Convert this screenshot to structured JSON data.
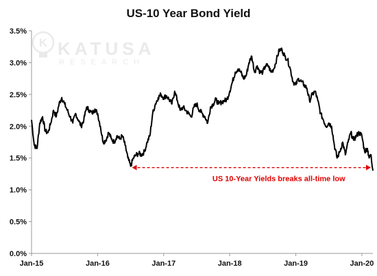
{
  "chart_data": {
    "type": "line",
    "title": "US-10 Year Bond Yield",
    "xlabel": "",
    "ylabel": "",
    "y_ticks": [
      "0.0%",
      "0.5%",
      "1.0%",
      "1.5%",
      "2.0%",
      "2.5%",
      "3.0%",
      "3.5%"
    ],
    "ylim": [
      0.0,
      3.5
    ],
    "x_ticks": [
      "Jan-15",
      "Jan-16",
      "Jan-17",
      "Jan-18",
      "Jan-19",
      "Jan-20"
    ],
    "xlim": [
      "2015-01",
      "2020-03"
    ],
    "grid": false,
    "series": [
      {
        "color": "#000000",
        "points": [
          [
            "2015-01",
            2.1
          ],
          [
            "2015-01",
            1.7
          ],
          [
            "2015-02",
            1.65
          ],
          [
            "2015-02",
            2.05
          ],
          [
            "2015-03",
            2.15
          ],
          [
            "2015-03",
            1.92
          ],
          [
            "2015-04",
            1.9
          ],
          [
            "2015-04",
            2.05
          ],
          [
            "2015-05",
            2.25
          ],
          [
            "2015-05",
            2.15
          ],
          [
            "2015-06",
            2.35
          ],
          [
            "2015-06",
            2.45
          ],
          [
            "2015-07",
            2.35
          ],
          [
            "2015-07",
            2.25
          ],
          [
            "2015-08",
            2.15
          ],
          [
            "2015-08",
            2.05
          ],
          [
            "2015-09",
            2.2
          ],
          [
            "2015-09",
            2.1
          ],
          [
            "2015-10",
            2.0
          ],
          [
            "2015-10",
            2.1
          ],
          [
            "2015-11",
            2.3
          ],
          [
            "2015-11",
            2.25
          ],
          [
            "2015-12",
            2.2
          ],
          [
            "2015-12",
            2.27
          ],
          [
            "2016-01",
            2.2
          ],
          [
            "2016-01",
            2.0
          ],
          [
            "2016-02",
            1.75
          ],
          [
            "2016-02",
            1.78
          ],
          [
            "2016-03",
            1.9
          ],
          [
            "2016-03",
            1.8
          ],
          [
            "2016-04",
            1.75
          ],
          [
            "2016-04",
            1.85
          ],
          [
            "2016-05",
            1.8
          ],
          [
            "2016-05",
            1.85
          ],
          [
            "2016-06",
            1.7
          ],
          [
            "2016-06",
            1.5
          ],
          [
            "2016-07",
            1.37
          ],
          [
            "2016-07",
            1.5
          ],
          [
            "2016-08",
            1.55
          ],
          [
            "2016-08",
            1.57
          ],
          [
            "2016-09",
            1.55
          ],
          [
            "2016-09",
            1.6
          ],
          [
            "2016-10",
            1.75
          ],
          [
            "2016-10",
            1.85
          ],
          [
            "2016-11",
            2.2
          ],
          [
            "2016-11",
            2.35
          ],
          [
            "2016-12",
            2.45
          ],
          [
            "2016-12",
            2.5
          ],
          [
            "2017-01",
            2.45
          ],
          [
            "2017-01",
            2.48
          ],
          [
            "2017-02",
            2.42
          ],
          [
            "2017-02",
            2.35
          ],
          [
            "2017-03",
            2.55
          ],
          [
            "2017-03",
            2.4
          ],
          [
            "2017-04",
            2.25
          ],
          [
            "2017-04",
            2.3
          ],
          [
            "2017-05",
            2.25
          ],
          [
            "2017-05",
            2.2
          ],
          [
            "2017-06",
            2.15
          ],
          [
            "2017-06",
            2.3
          ],
          [
            "2017-07",
            2.35
          ],
          [
            "2017-07",
            2.25
          ],
          [
            "2017-08",
            2.2
          ],
          [
            "2017-08",
            2.15
          ],
          [
            "2017-09",
            2.05
          ],
          [
            "2017-09",
            2.3
          ],
          [
            "2017-10",
            2.35
          ],
          [
            "2017-10",
            2.42
          ],
          [
            "2017-11",
            2.35
          ],
          [
            "2017-11",
            2.38
          ],
          [
            "2017-12",
            2.4
          ],
          [
            "2017-12",
            2.42
          ],
          [
            "2018-01",
            2.55
          ],
          [
            "2018-01",
            2.7
          ],
          [
            "2018-02",
            2.85
          ],
          [
            "2018-02",
            2.9
          ],
          [
            "2018-03",
            2.85
          ],
          [
            "2018-03",
            2.75
          ],
          [
            "2018-04",
            2.8
          ],
          [
            "2018-04",
            3.0
          ],
          [
            "2018-05",
            3.1
          ],
          [
            "2018-05",
            2.85
          ],
          [
            "2018-06",
            2.95
          ],
          [
            "2018-06",
            2.85
          ],
          [
            "2018-07",
            2.85
          ],
          [
            "2018-07",
            2.95
          ],
          [
            "2018-08",
            2.95
          ],
          [
            "2018-08",
            2.85
          ],
          [
            "2018-09",
            2.9
          ],
          [
            "2018-09",
            3.05
          ],
          [
            "2018-10",
            3.2
          ],
          [
            "2018-10",
            3.2
          ],
          [
            "2018-11",
            3.1
          ],
          [
            "2018-11",
            3.05
          ],
          [
            "2018-12",
            2.9
          ],
          [
            "2018-12",
            2.7
          ],
          [
            "2019-01",
            2.65
          ],
          [
            "2019-01",
            2.75
          ],
          [
            "2019-02",
            2.7
          ],
          [
            "2019-02",
            2.65
          ],
          [
            "2019-03",
            2.6
          ],
          [
            "2019-03",
            2.4
          ],
          [
            "2019-04",
            2.5
          ],
          [
            "2019-04",
            2.55
          ],
          [
            "2019-05",
            2.4
          ],
          [
            "2019-05",
            2.2
          ],
          [
            "2019-06",
            2.1
          ],
          [
            "2019-06",
            2.0
          ],
          [
            "2019-07",
            2.05
          ],
          [
            "2019-07",
            2.0
          ],
          [
            "2019-08",
            1.7
          ],
          [
            "2019-08",
            1.5
          ],
          [
            "2019-09",
            1.6
          ],
          [
            "2019-09",
            1.75
          ],
          [
            "2019-10",
            1.55
          ],
          [
            "2019-10",
            1.75
          ],
          [
            "2019-11",
            1.9
          ],
          [
            "2019-11",
            1.78
          ],
          [
            "2019-12",
            1.85
          ],
          [
            "2019-12",
            1.9
          ],
          [
            "2020-01",
            1.85
          ],
          [
            "2020-01",
            1.6
          ],
          [
            "2020-02",
            1.65
          ],
          [
            "2020-02",
            1.5
          ],
          [
            "2020-02",
            1.55
          ],
          [
            "2020-03",
            1.3
          ]
        ]
      }
    ],
    "annotations": [
      {
        "text": "US 10-Year Yields breaks all-time low",
        "x": "2016-07",
        "x_end": "2020-03",
        "y": 1.35,
        "color": "#e00000",
        "arrow": "both"
      }
    ],
    "watermark": {
      "text_top": "KATUSA",
      "text_bottom": "RESEARCH",
      "icon": "lightbulb-k-logo"
    }
  }
}
